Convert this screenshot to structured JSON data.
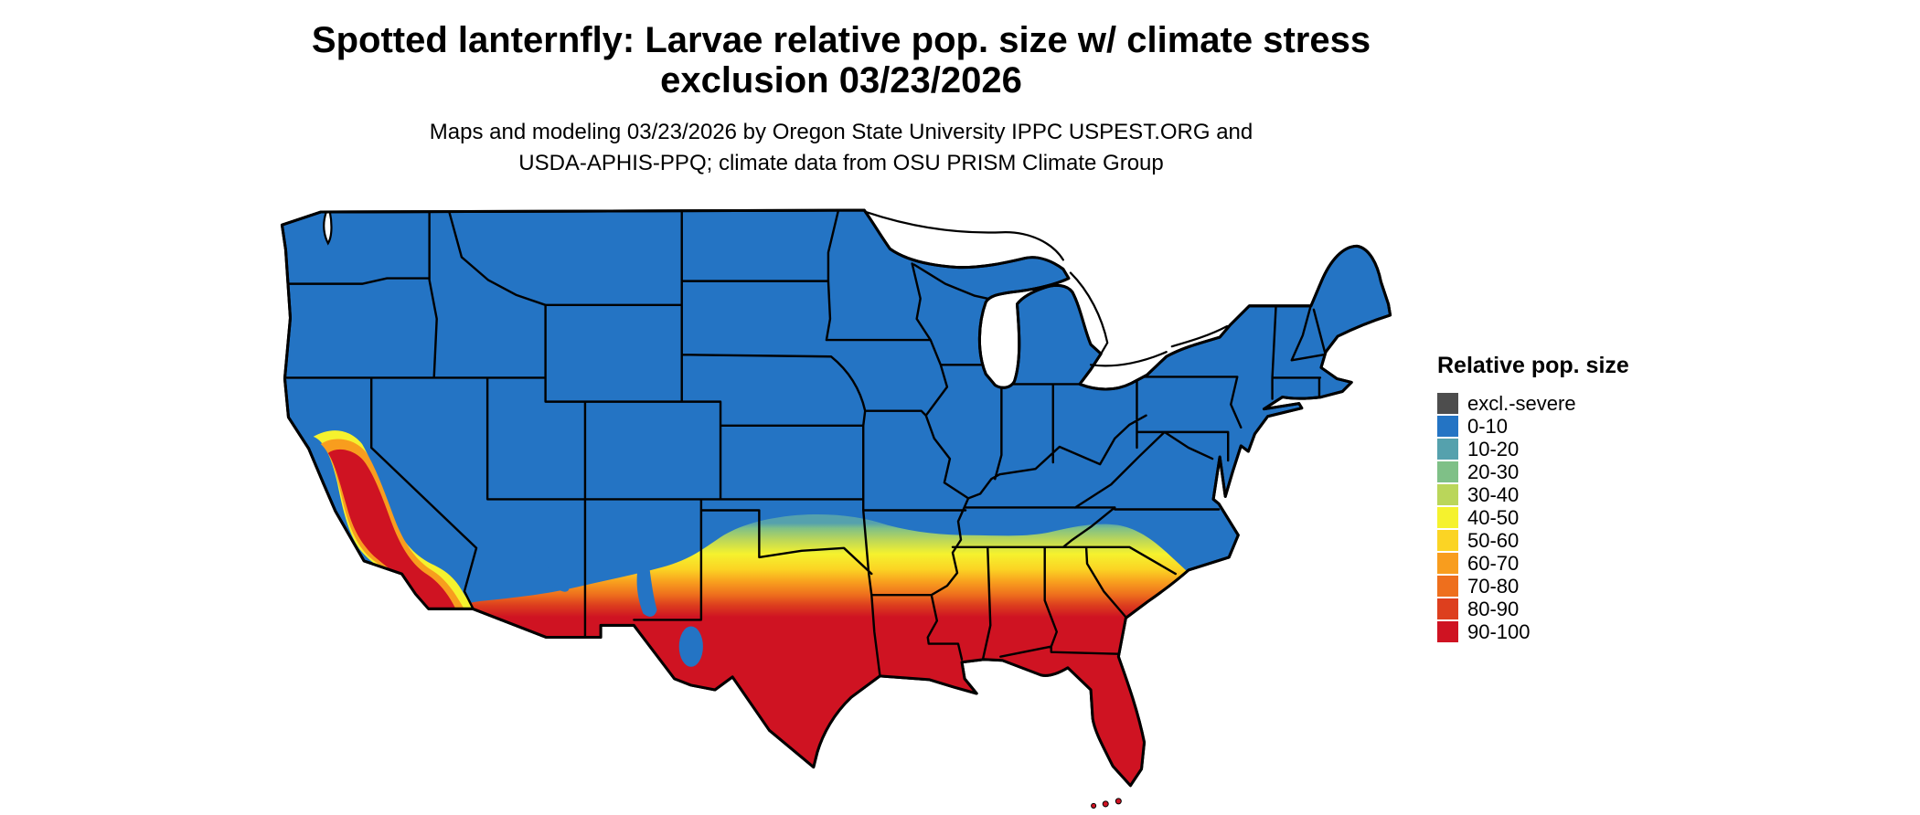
{
  "title": {
    "line1": "Spotted lanternfly: Larvae relative pop. size w/ climate stress",
    "line2": "exclusion 03/23/2026"
  },
  "subtitle": {
    "line1": "Maps and modeling 03/23/2026 by Oregon State University IPPC USPEST.ORG and",
    "line2": "USDA-APHIS-PPQ; climate data from OSU PRISM Climate Group"
  },
  "legend": {
    "title": "Relative pop. size",
    "items": [
      {
        "label": "excl.-severe",
        "color": "#4d4d4d"
      },
      {
        "label": "0-10",
        "color": "#2474c4"
      },
      {
        "label": "10-20",
        "color": "#55a1ad"
      },
      {
        "label": "20-30",
        "color": "#7fc087"
      },
      {
        "label": "30-40",
        "color": "#bad65a"
      },
      {
        "label": "40-50",
        "color": "#f5f22e"
      },
      {
        "label": "50-60",
        "color": "#fbd424"
      },
      {
        "label": "60-70",
        "color": "#f89d1e"
      },
      {
        "label": "70-80",
        "color": "#ee6f1d"
      },
      {
        "label": "80-90",
        "color": "#dd3f1e"
      },
      {
        "label": "90-100",
        "color": "#cf1322"
      }
    ]
  }
}
